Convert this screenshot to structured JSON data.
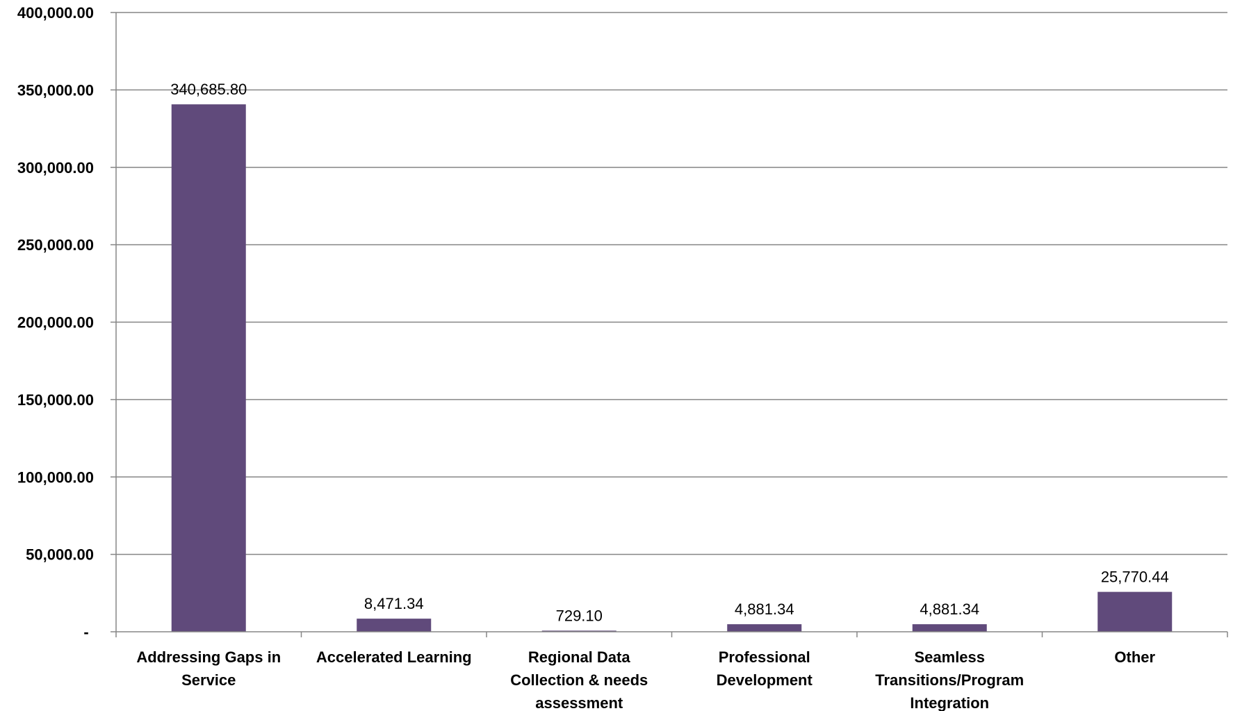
{
  "chart_data": {
    "type": "bar",
    "categories": [
      [
        "Addressing Gaps in",
        "Service"
      ],
      [
        "Accelerated Learning"
      ],
      [
        "Regional Data",
        "Collection & needs",
        "assessment"
      ],
      [
        "Professional",
        "Development"
      ],
      [
        "Seamless",
        "Transitions/Program",
        "Integration"
      ],
      [
        "Other"
      ]
    ],
    "values": [
      340685.8,
      8471.34,
      729.1,
      4881.34,
      4881.34,
      25770.44
    ],
    "data_labels": [
      "340,685.80",
      "8,471.34",
      "729.10",
      "4,881.34",
      "4,881.34",
      "25,770.44"
    ],
    "y_ticks": [
      0,
      50000,
      100000,
      150000,
      200000,
      250000,
      300000,
      350000,
      400000
    ],
    "y_tick_labels": [
      "-",
      "50,000.00",
      "100,000.00",
      "150,000.00",
      "200,000.00",
      "250,000.00",
      "300,000.00",
      "350,000.00",
      "400,000.00"
    ],
    "ylim": [
      0,
      400000
    ],
    "grid": true,
    "legend": "none",
    "title": "",
    "xlabel": "",
    "ylabel": "",
    "bar_color": "#604a7b",
    "grid_color": "#868686",
    "axis_color": "#868686"
  }
}
